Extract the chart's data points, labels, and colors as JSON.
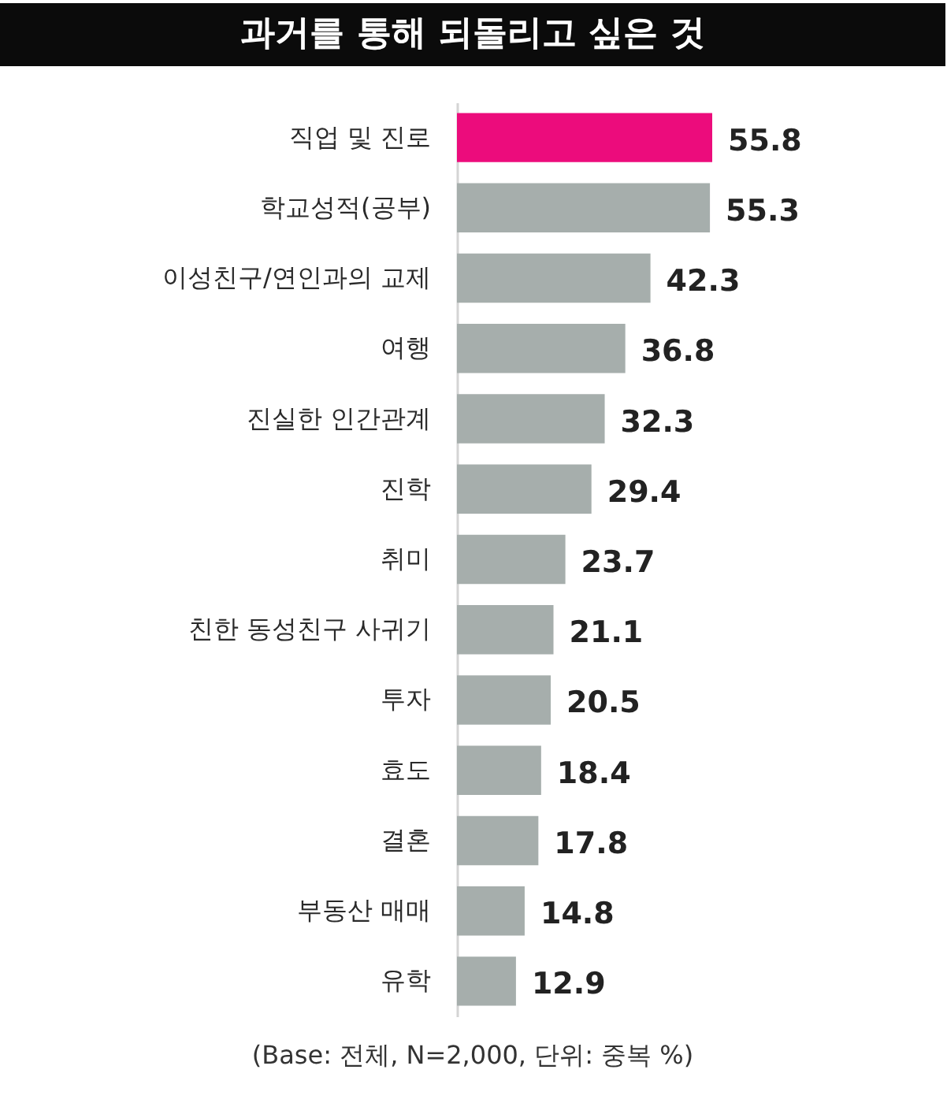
{
  "chart_data": {
    "type": "bar",
    "orientation": "horizontal",
    "title": "과거를 통해 되돌리고 싶은 것",
    "categories": [
      "직업 및 진로",
      "학교성적(공부)",
      "이성친구/연인과의 교제",
      "여행",
      "진실한 인간관계",
      "진학",
      "취미",
      "친한 동성친구 사귀기",
      "투자",
      "효도",
      "결혼",
      "부동산 매매",
      "유학"
    ],
    "values": [
      55.8,
      55.3,
      42.3,
      36.8,
      32.3,
      29.4,
      23.7,
      21.1,
      20.5,
      18.4,
      17.8,
      14.8,
      12.9
    ],
    "colors": [
      "#ec0c7c",
      "#a6aeac",
      "#a6aeac",
      "#a6aeac",
      "#a6aeac",
      "#a6aeac",
      "#a6aeac",
      "#a6aeac",
      "#a6aeac",
      "#a6aeac",
      "#a6aeac",
      "#a6aeac",
      "#a6aeac"
    ],
    "data_labels": true,
    "annotations": [
      "(Base: 전체, N=2,000, 단위: 중복 %)"
    ]
  }
}
